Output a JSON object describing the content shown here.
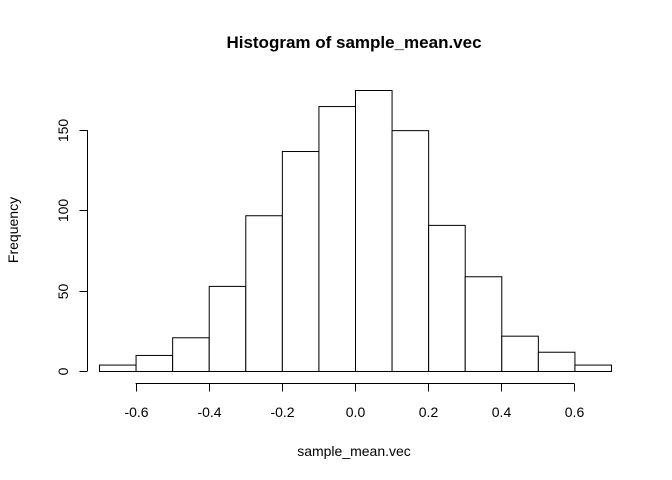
{
  "chart_data": {
    "type": "bar",
    "title": "Histogram of sample_mean.vec",
    "xlabel": "sample_mean.vec",
    "ylabel": "Frequency",
    "bins": [
      {
        "start": -0.7,
        "end": -0.6,
        "value": 4
      },
      {
        "start": -0.6,
        "end": -0.5,
        "value": 10
      },
      {
        "start": -0.5,
        "end": -0.4,
        "value": 21
      },
      {
        "start": -0.4,
        "end": -0.3,
        "value": 53
      },
      {
        "start": -0.3,
        "end": -0.2,
        "value": 97
      },
      {
        "start": -0.2,
        "end": -0.1,
        "value": 137
      },
      {
        "start": -0.1,
        "end": 0.0,
        "value": 165
      },
      {
        "start": 0.0,
        "end": 0.1,
        "value": 175
      },
      {
        "start": 0.1,
        "end": 0.2,
        "value": 150
      },
      {
        "start": 0.2,
        "end": 0.3,
        "value": 91
      },
      {
        "start": 0.3,
        "end": 0.4,
        "value": 59
      },
      {
        "start": 0.4,
        "end": 0.5,
        "value": 22
      },
      {
        "start": 0.5,
        "end": 0.6,
        "value": 12
      },
      {
        "start": 0.6,
        "end": 0.7,
        "value": 4
      }
    ],
    "xlim": [
      -0.7,
      0.7
    ],
    "ylim": [
      0,
      175
    ],
    "x_ticks": [
      {
        "value": -0.6,
        "label": "-0.6"
      },
      {
        "value": -0.4,
        "label": "-0.4"
      },
      {
        "value": -0.2,
        "label": "-0.2"
      },
      {
        "value": 0.0,
        "label": "0.0"
      },
      {
        "value": 0.2,
        "label": "0.2"
      },
      {
        "value": 0.4,
        "label": "0.4"
      },
      {
        "value": 0.6,
        "label": "0.6"
      }
    ],
    "y_ticks": [
      {
        "value": 0,
        "label": "0"
      },
      {
        "value": 50,
        "label": "50"
      },
      {
        "value": 100,
        "label": "100"
      },
      {
        "value": 150,
        "label": "150"
      }
    ],
    "grid": false
  }
}
